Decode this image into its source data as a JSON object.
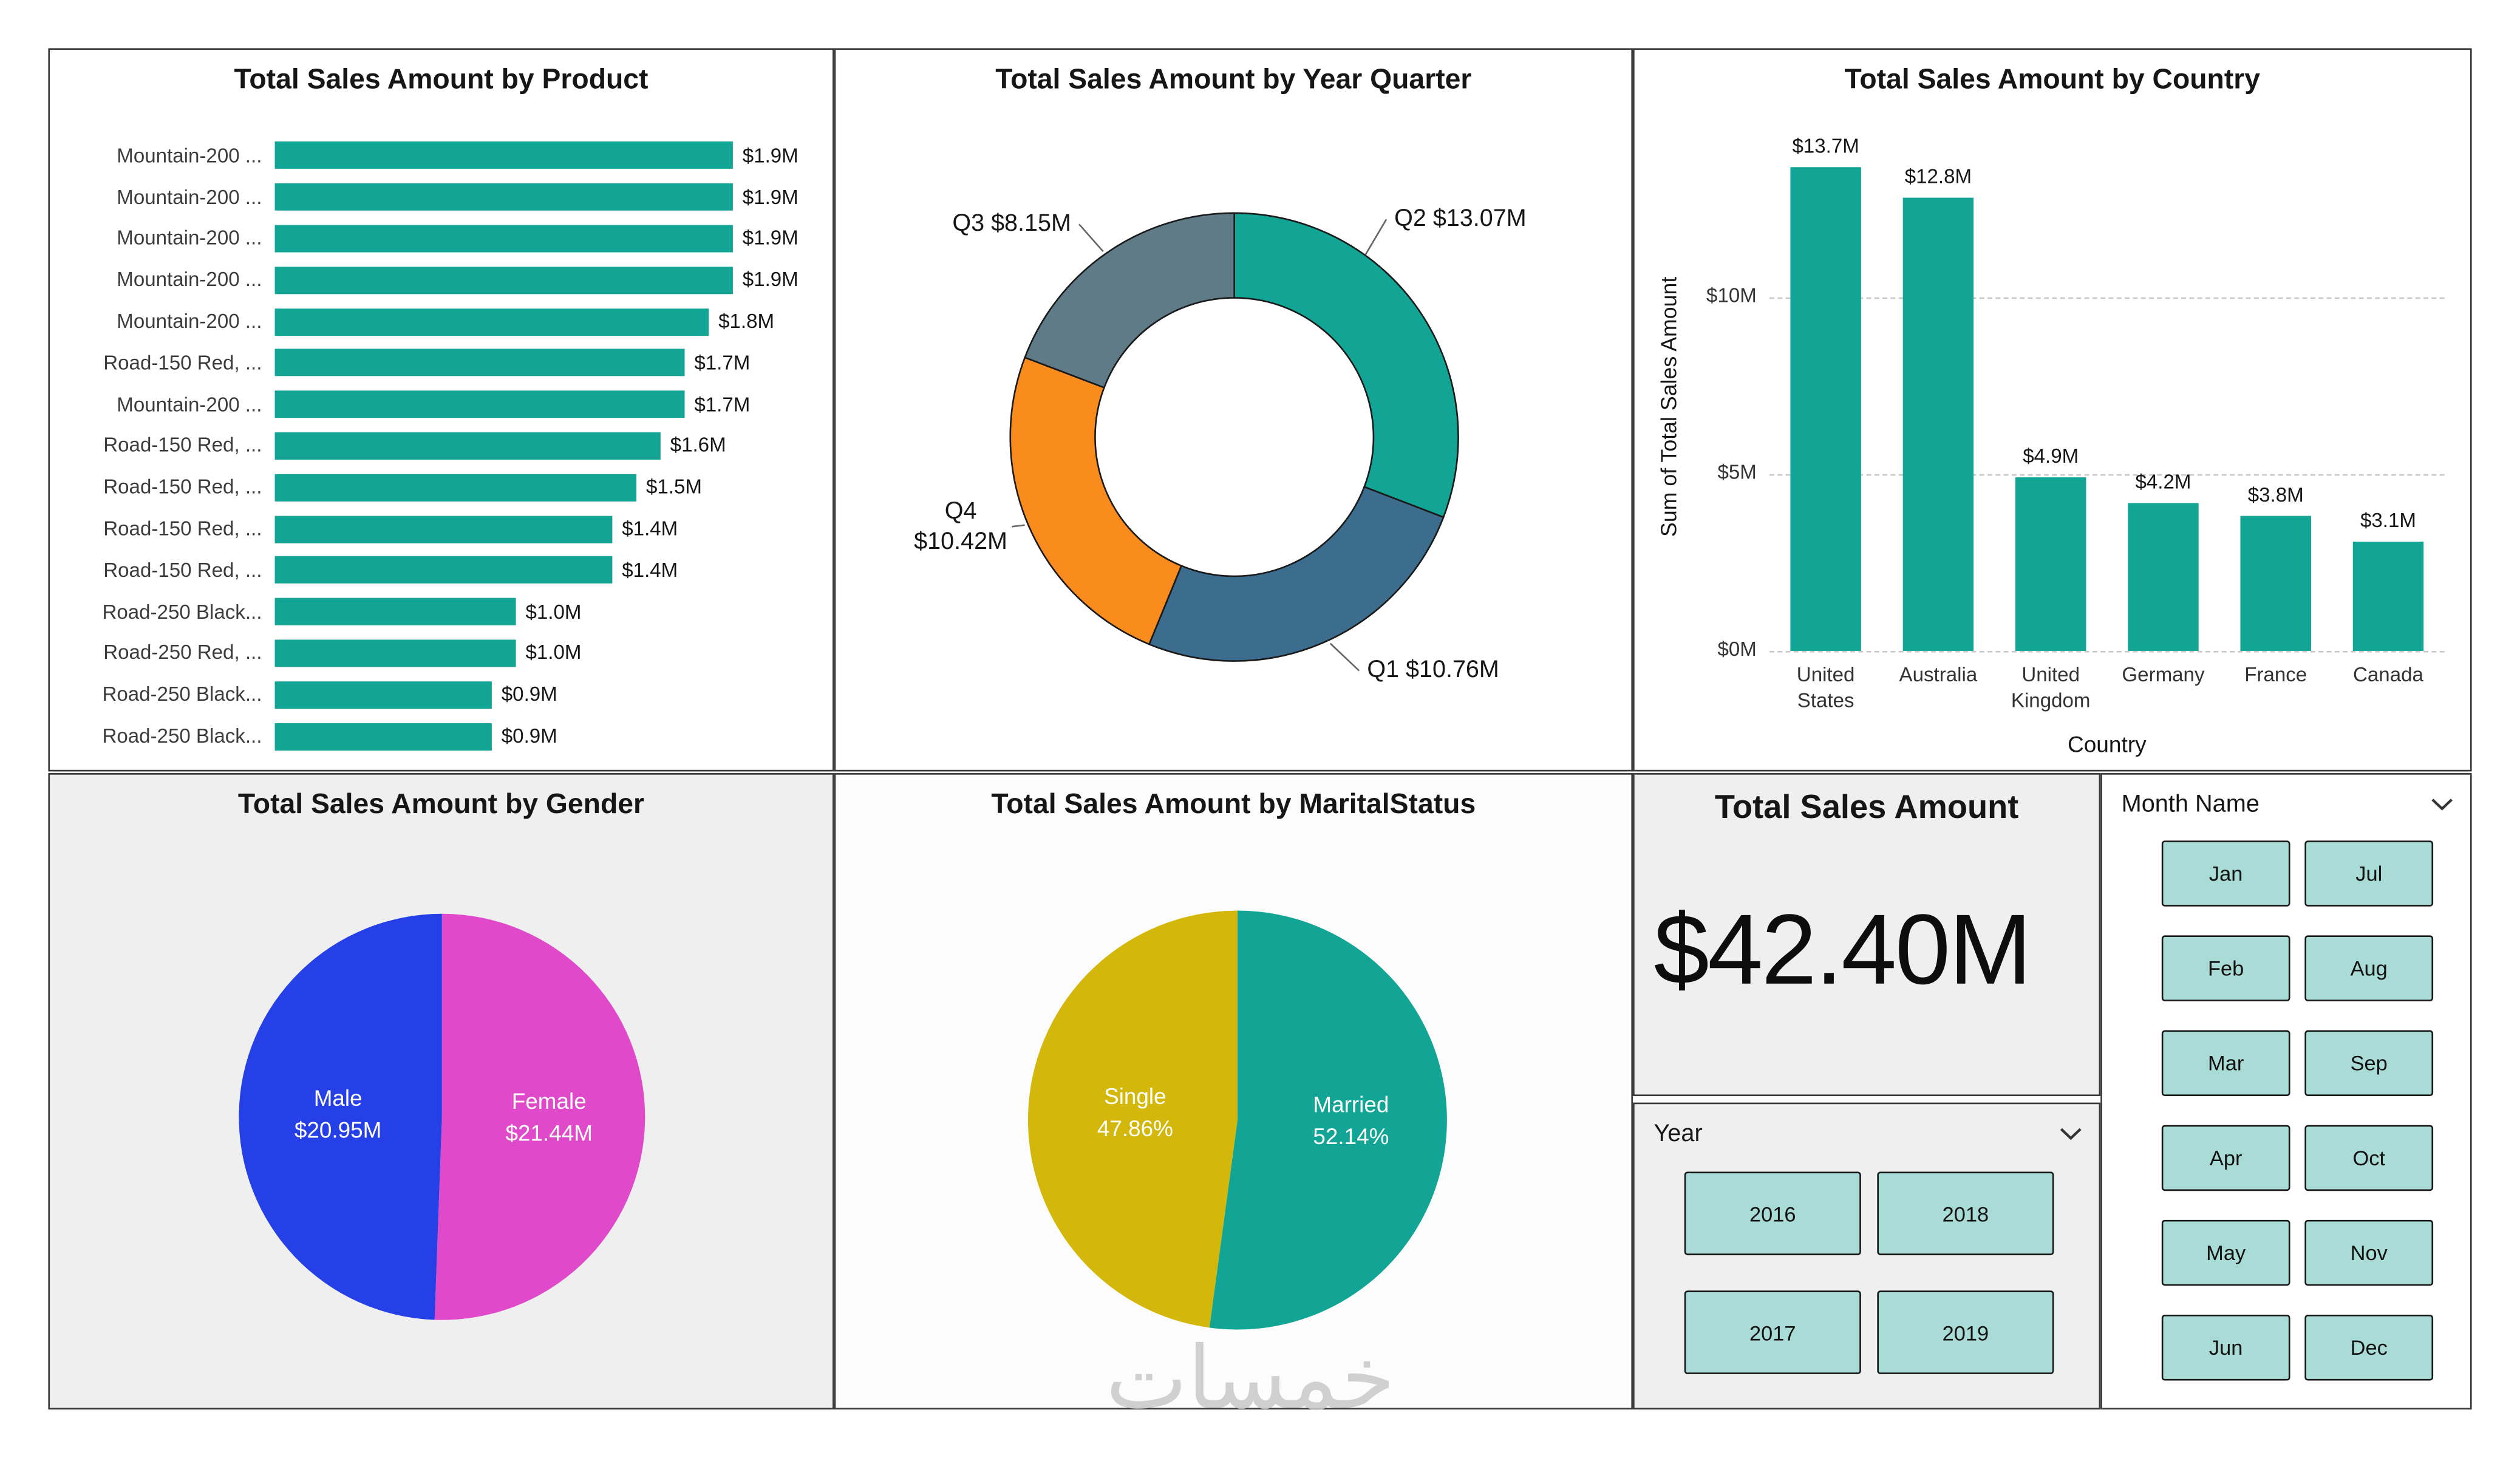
{
  "watermark": {
    "text": "خمسات"
  },
  "colors": {
    "teal": "#12A596",
    "slicer_button_fill": "#A9DCD6",
    "slicer_button_border": "#1A1A1A"
  },
  "panels": {
    "card": {
      "title": "Total Sales Amount",
      "value": "$42.40M"
    },
    "year_slicer": {
      "title": "Year",
      "options": [
        "2016",
        "2017",
        "2018",
        "2019"
      ]
    },
    "month_slicer": {
      "title": "Month Name",
      "options": [
        "Jan",
        "Feb",
        "Mar",
        "Apr",
        "May",
        "Jun",
        "Jul",
        "Aug",
        "Sep",
        "Oct",
        "Nov",
        "Dec"
      ]
    }
  },
  "chart_data": [
    {
      "id": "product",
      "type": "bar",
      "orientation": "horizontal",
      "title": "Total Sales Amount by Product",
      "color": "#12A596",
      "xlim": [
        0,
        2.0
      ],
      "categories": [
        "Mountain-200 ...",
        "Mountain-200 ...",
        "Mountain-200 ...",
        "Mountain-200 ...",
        "Mountain-200 ...",
        "Road-150 Red, ...",
        "Mountain-200 ...",
        "Road-150 Red, ...",
        "Road-150 Red, ...",
        "Road-150 Red, ...",
        "Road-150 Red, ...",
        "Road-250 Black...",
        "Road-250 Red, ...",
        "Road-250 Black...",
        "Road-250 Black..."
      ],
      "values": [
        1.9,
        1.9,
        1.9,
        1.9,
        1.8,
        1.7,
        1.7,
        1.6,
        1.5,
        1.4,
        1.4,
        1.0,
        1.0,
        0.9,
        0.9
      ],
      "value_labels": [
        "$1.9M",
        "$1.9M",
        "$1.9M",
        "$1.9M",
        "$1.8M",
        "$1.7M",
        "$1.7M",
        "$1.6M",
        "$1.5M",
        "$1.4M",
        "$1.4M",
        "$1.0M",
        "$1.0M",
        "$0.9M",
        "$0.9M"
      ]
    },
    {
      "id": "quarter",
      "type": "pie",
      "subtype": "donut",
      "title": "Total Sales Amount by Year Quarter",
      "slices": [
        {
          "label": "Q2",
          "value": 13.07,
          "color": "#12A596",
          "callout_lines": [
            "Q2 $13.07M"
          ]
        },
        {
          "label": "Q1",
          "value": 10.76,
          "color": "#3D6D8E",
          "callout_lines": [
            "Q1 $10.76M"
          ]
        },
        {
          "label": "Q4",
          "value": 10.42,
          "color": "#F98C1D",
          "callout_lines": [
            "Q4",
            "$10.42M"
          ]
        },
        {
          "label": "Q3",
          "value": 8.15,
          "color": "#5E7B87",
          "callout_lines": [
            "Q3 $8.15M"
          ]
        }
      ]
    },
    {
      "id": "country",
      "type": "bar",
      "orientation": "vertical",
      "title": "Total Sales Amount by Country",
      "color": "#12A596",
      "xlabel": "Country",
      "ylabel": "Sum of Total Sales Amount",
      "ylim": [
        0,
        14.5
      ],
      "categories": [
        "United States",
        "Australia",
        "United Kingdom",
        "Germany",
        "France",
        "Canada"
      ],
      "values": [
        13.7,
        12.8,
        4.9,
        4.2,
        3.8,
        3.1
      ],
      "value_labels": [
        "$13.7M",
        "$12.8M",
        "$4.9M",
        "$4.2M",
        "$3.8M",
        "$3.1M"
      ],
      "yticks": [
        {
          "label": "$0M",
          "value": 0
        },
        {
          "label": "$5M",
          "value": 5
        },
        {
          "label": "$10M",
          "value": 10
        }
      ]
    },
    {
      "id": "gender",
      "type": "pie",
      "title": "Total Sales Amount by Gender",
      "slices": [
        {
          "label": "Female",
          "value": 21.44,
          "color": "#E04ACA",
          "label_lines": [
            "Female",
            "$21.44M"
          ]
        },
        {
          "label": "Male",
          "value": 20.95,
          "color": "#2540E6",
          "label_lines": [
            "Male",
            "$20.95M"
          ]
        }
      ]
    },
    {
      "id": "marital",
      "type": "pie",
      "title": "Total Sales Amount by MaritalStatus",
      "slices": [
        {
          "label": "Married",
          "value": 52.14,
          "color": "#12A596",
          "label_lines": [
            "Married",
            "52.14%"
          ]
        },
        {
          "label": "Single",
          "value": 47.86,
          "color": "#D4B70B",
          "label_lines": [
            "Single",
            "47.86%"
          ]
        }
      ]
    }
  ]
}
